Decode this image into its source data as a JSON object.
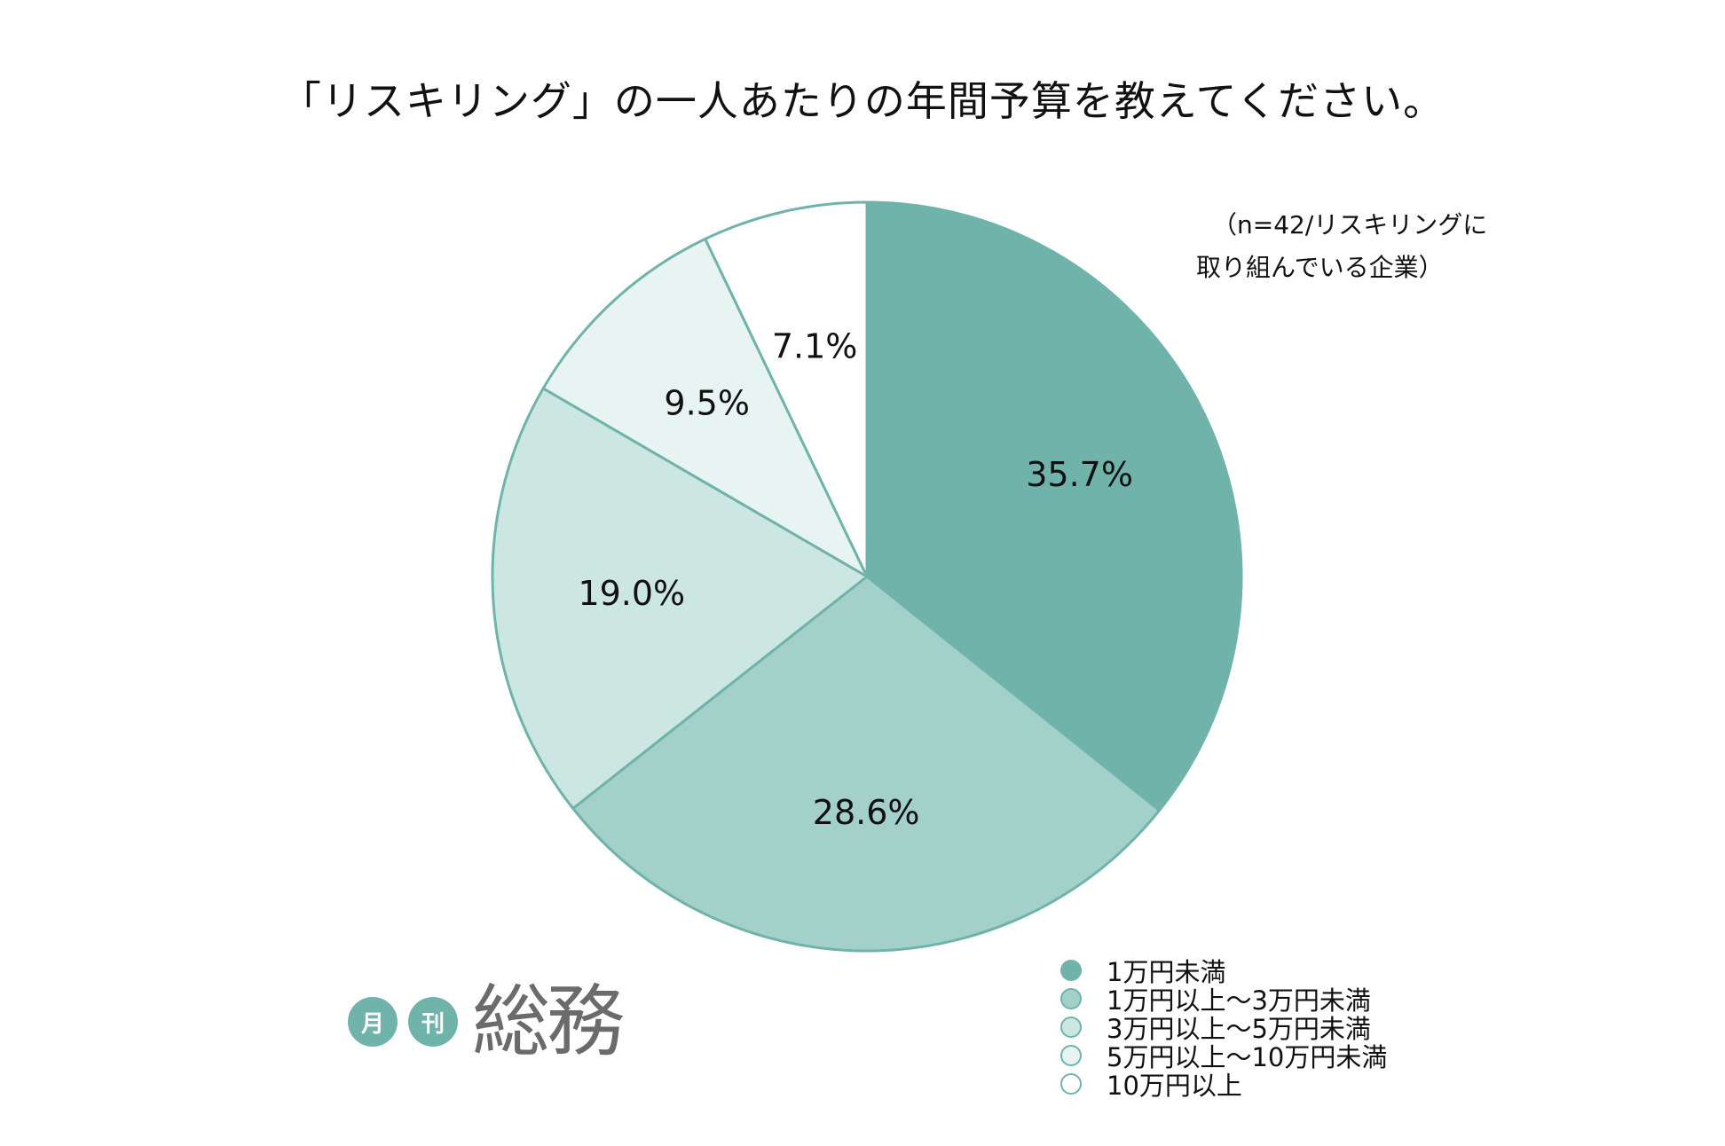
{
  "chart_data": {
    "type": "pie",
    "title": "「リスキリング」の一人あたりの年間予算を教えてください。",
    "note": [
      "（n=42/リスキリングに",
      "取り組んでいる企業）"
    ],
    "categories": [
      "1万円未満",
      "1万円以上〜3万円未満",
      "3万円以上〜5万円未満",
      "5万円以上〜10万円未満",
      "10万円以上"
    ],
    "values": [
      35.7,
      28.6,
      19.0,
      9.5,
      7.1
    ],
    "labels": [
      "35.7%",
      "28.6%",
      "19.0%",
      "9.5%",
      "7.1%"
    ],
    "colors": [
      "#6fb3ab",
      "#a4d0ca",
      "#cce6e2",
      "#e7f4f2",
      "#ffffff"
    ],
    "edge_color": "#6fb3ab",
    "start": "12 o'clock",
    "direction": "clockwise",
    "legend_position": "bottom-right"
  },
  "logo": {
    "badge1": "月",
    "badge2": "刊",
    "main": "総務"
  }
}
